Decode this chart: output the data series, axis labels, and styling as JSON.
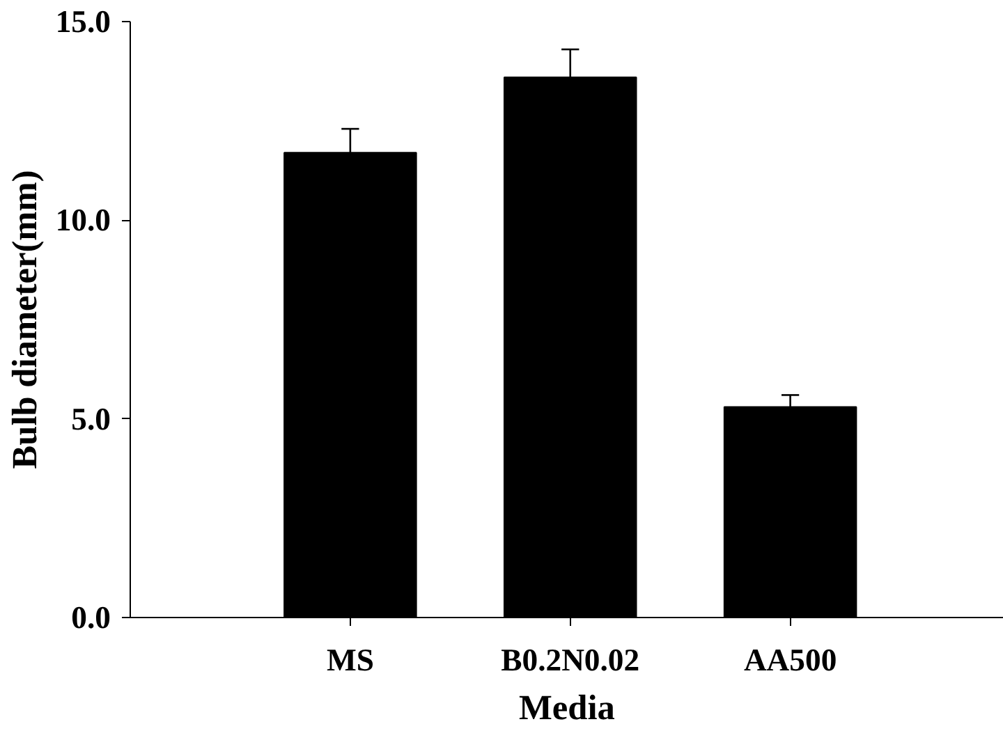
{
  "chart_data": {
    "type": "bar",
    "xlabel": "Media",
    "ylabel": "Bulb diameter(mm)",
    "categories": [
      "MS",
      "B0.2N0.02",
      "AA500"
    ],
    "values": [
      11.7,
      13.6,
      5.3
    ],
    "errors": [
      [
        11.7,
        12.3
      ],
      [
        13.6,
        14.3
      ],
      [
        5.3,
        5.6
      ]
    ],
    "color": "#000000",
    "ylim": [
      0,
      15
    ],
    "yticks": [
      {
        "value": 0,
        "label": "0.0"
      },
      {
        "value": 5,
        "label": "5.0"
      },
      {
        "value": 10,
        "label": "10.0"
      },
      {
        "value": 15,
        "label": "15.0"
      }
    ],
    "grid": false
  }
}
